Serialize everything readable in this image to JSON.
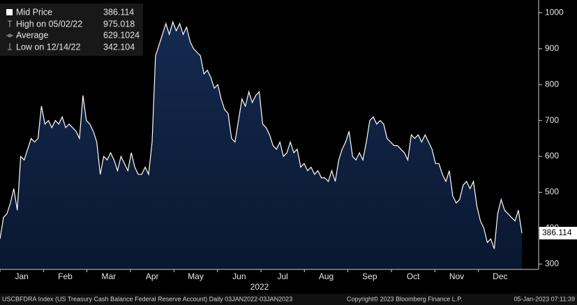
{
  "chart_data": {
    "type": "area",
    "xtick_labels": [
      "Jan",
      "Feb",
      "Mar",
      "Apr",
      "May",
      "Jun",
      "Jul",
      "Aug",
      "Sep",
      "Oct",
      "Nov",
      "Dec"
    ],
    "xlabel": "2022",
    "values": [
      370,
      430,
      440,
      470,
      510,
      450,
      600,
      590,
      620,
      650,
      640,
      650,
      740,
      690,
      700,
      680,
      700,
      690,
      710,
      680,
      690,
      680,
      670,
      650,
      770,
      700,
      690,
      670,
      640,
      550,
      600,
      590,
      610,
      590,
      560,
      600,
      580,
      560,
      610,
      570,
      550,
      550,
      570,
      550,
      640,
      880,
      910,
      940,
      970,
      940,
      975.018,
      950,
      970,
      940,
      960,
      920,
      900,
      890,
      880,
      830,
      840,
      820,
      790,
      800,
      760,
      730,
      720,
      650,
      640,
      700,
      760,
      740,
      780,
      750,
      770,
      780,
      690,
      680,
      660,
      630,
      620,
      640,
      600,
      610,
      640,
      610,
      620,
      570,
      580,
      560,
      570,
      550,
      560,
      540,
      540,
      530,
      560,
      530,
      590,
      620,
      640,
      670,
      600,
      590,
      610,
      590,
      640,
      700,
      710,
      690,
      700,
      690,
      650,
      640,
      630,
      630,
      620,
      610,
      590,
      660,
      650,
      660,
      640,
      660,
      640,
      620,
      580,
      580,
      550,
      530,
      560,
      490,
      470,
      480,
      520,
      530,
      510,
      530,
      460,
      420,
      400,
      360,
      370,
      342.104,
      440,
      480,
      450,
      440,
      430,
      420,
      450,
      386.114
    ],
    "fill": "#0e1f3d",
    "line_color": "#ffffff",
    "ylim": [
      285,
      1030
    ],
    "yticks": [
      300,
      400,
      500,
      600,
      700,
      800,
      900,
      1000
    ],
    "legend": [
      {
        "label": "Mid Price",
        "value": 386.114
      },
      {
        "label": "High on 05/02/22",
        "value": 975.018
      },
      {
        "label": "Average",
        "value": 629.1024
      },
      {
        "label": "Low on 12/14/22",
        "value": 342.104
      }
    ],
    "footer": {
      "left": "USCBFDRA Index (US Treasury Cash Balance Federal Reserve Account)  Daily 03JAN2022-03JAN2023",
      "center": "Copyright© 2023 Bloomberg Finance L.P.",
      "right": "05-Jan-2023 07:11:39"
    }
  }
}
